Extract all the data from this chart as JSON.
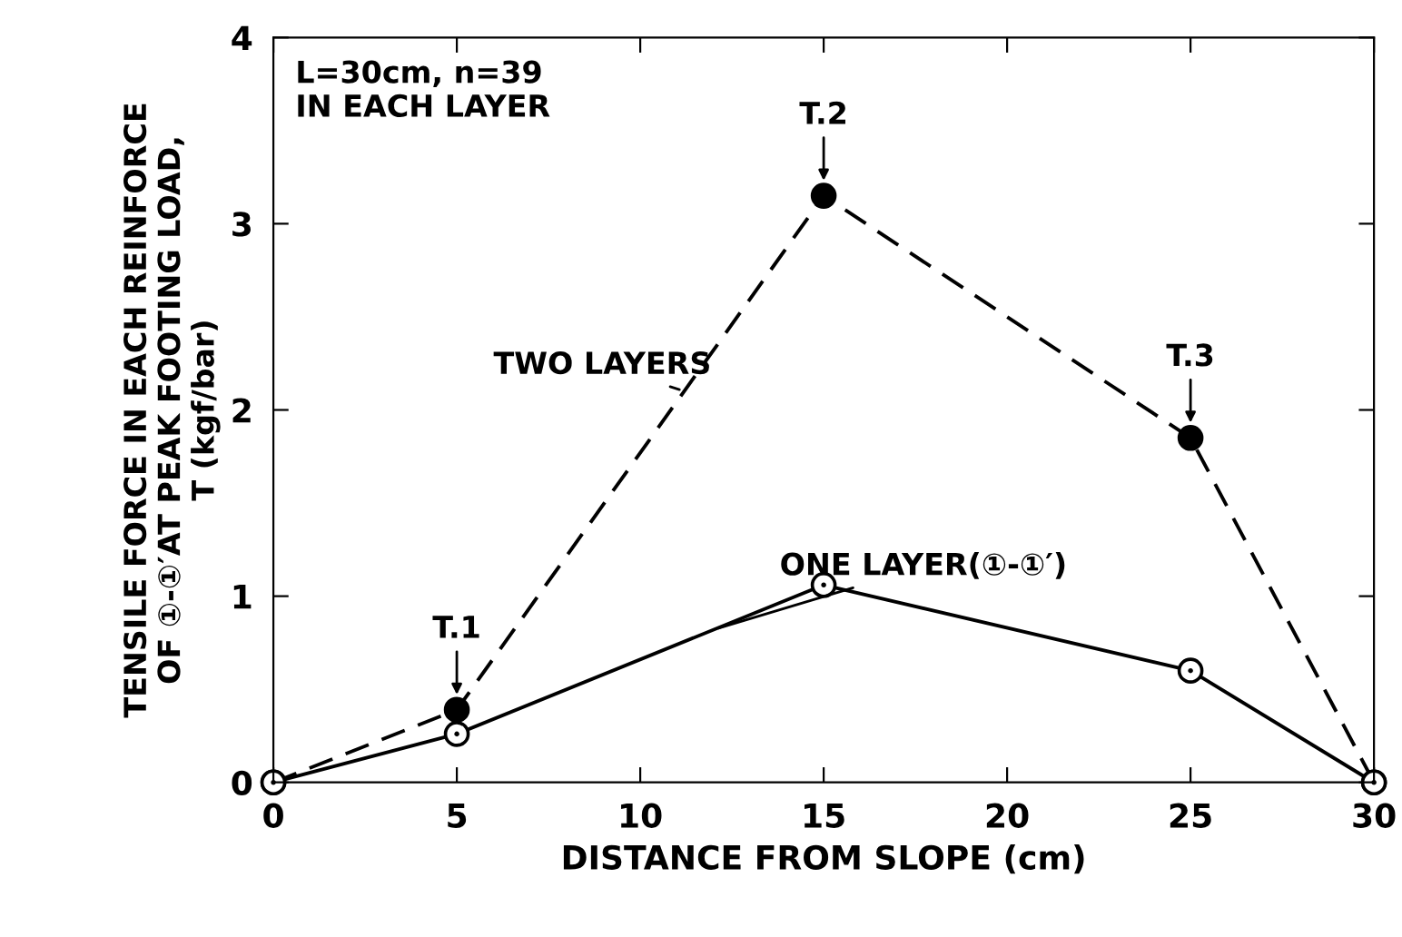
{
  "chart_data": {
    "type": "line",
    "xlabel": "DISTANCE FROM SLOPE (cm)",
    "ylabel": "TENSILE FORCE IN EACH REINFORCE\nOF ①-①′AT PEAK FOOTING LOAD,\nT (kgf/bar)",
    "x": [
      0,
      5,
      15,
      25,
      30
    ],
    "series": [
      {
        "name": "TWO LAYERS",
        "color": "#000000",
        "line_style": "dashed",
        "values": [
          0,
          0.39,
          3.15,
          1.85,
          0
        ]
      },
      {
        "name": "ONE LAYER(①-①′)",
        "color": "#000000",
        "line_style": "solid",
        "values": [
          0,
          0.26,
          1.06,
          0.6,
          0
        ]
      }
    ],
    "marker": "circle",
    "xlim": [
      0,
      30
    ],
    "xticks": [
      0,
      5,
      10,
      15,
      20,
      25,
      30
    ],
    "ylim": [
      0,
      4
    ],
    "yticks": [
      0,
      1,
      2,
      3,
      4
    ],
    "grid": false,
    "legend": false,
    "annotations": [
      "L=30cm, n=39\nIN EACH LAYER",
      {
        "text": "T.1",
        "x": 5,
        "y": 0.39
      },
      {
        "text": "T.2",
        "x": 15,
        "y": 3.15
      },
      {
        "text": "T.3",
        "x": 25,
        "y": 1.85
      }
    ]
  }
}
